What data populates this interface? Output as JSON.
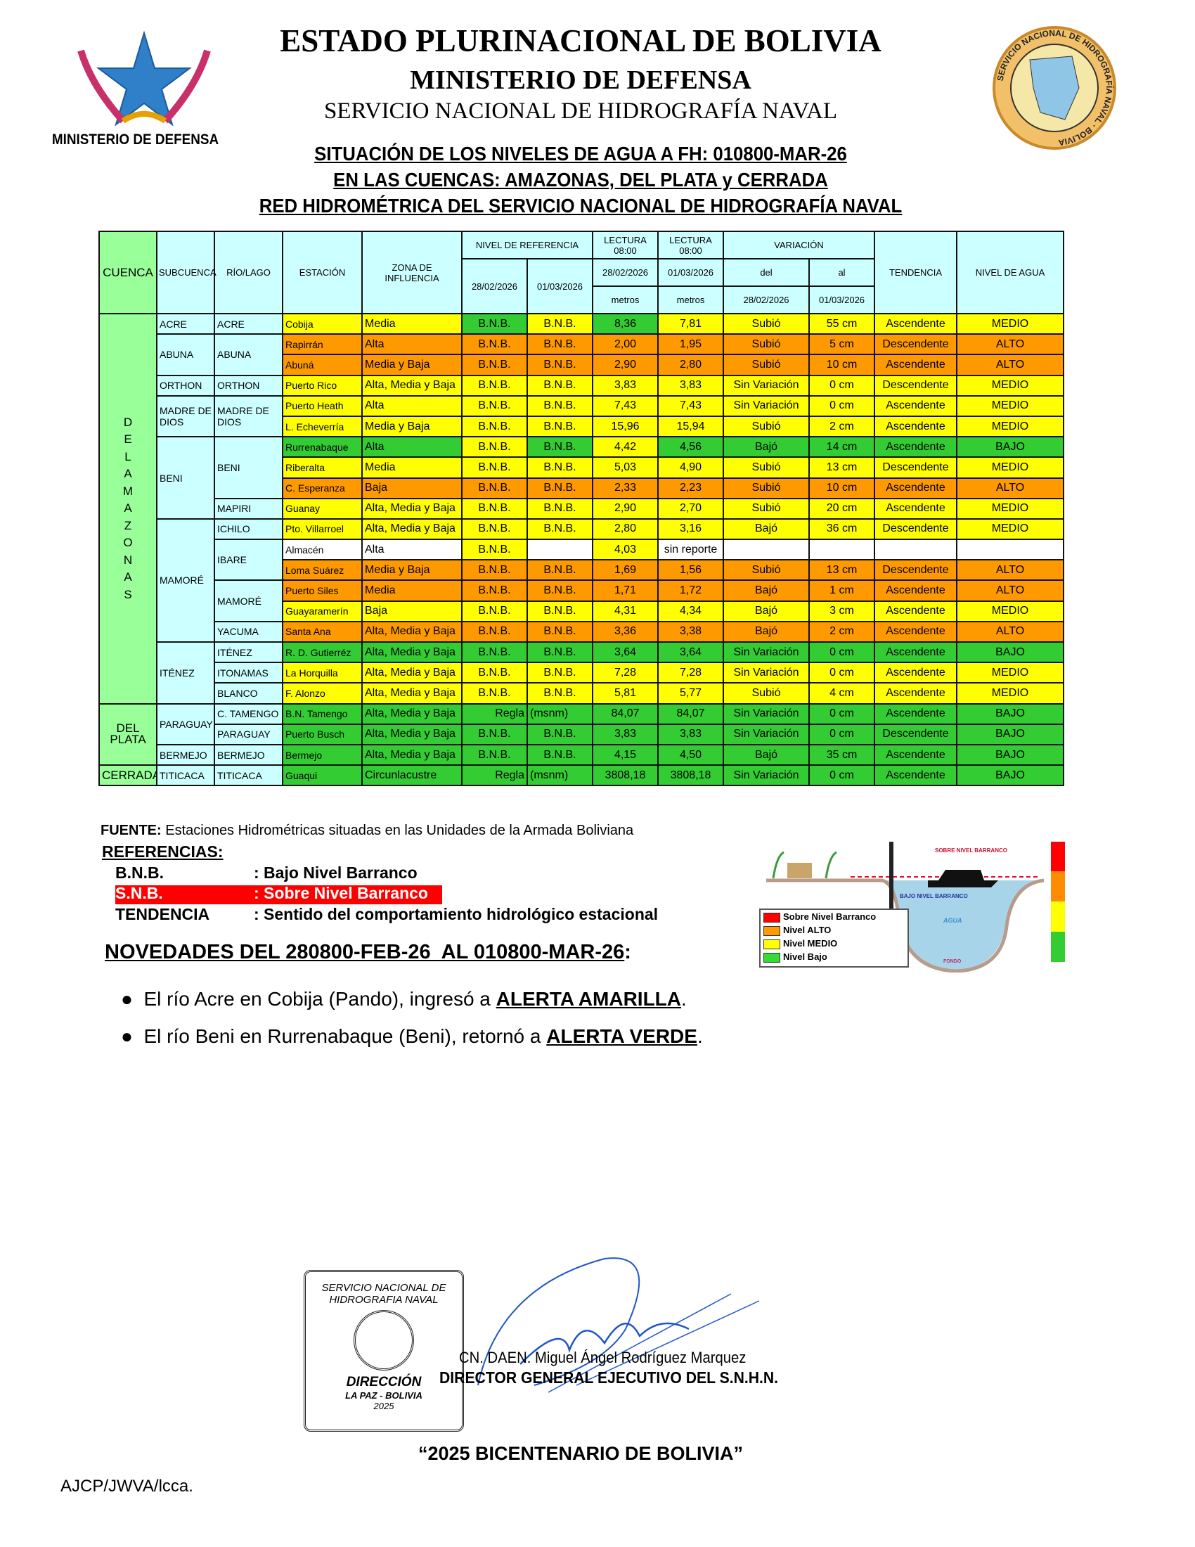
{
  "header": {
    "line1": "ESTADO PLURINACIONAL DE BOLIVIA",
    "line2": "MINISTERIO DE DEFENSA",
    "line3": "SERVICIO NACIONAL DE HIDROGRAFÍA NAVAL",
    "subtitle1": "SITUACIÓN DE LOS NIVELES DE AGUA A FH: 010800-MAR-26",
    "subtitle2": "EN LAS CUENCAS: AMAZONAS, DEL PLATA y CERRADA",
    "subtitle3": "RED HIDROMÉTRICA DEL SERVICIO NACIONAL DE HIDROGRAFÍA NAVAL",
    "left_logo_text": "MINISTERIO DE DEFENSA",
    "right_seal_text": "SERVICIO NACIONAL DE HIDROGRAFÍA NAVAL · BOLIVIA"
  },
  "colors": {
    "yellow": "#ffff00",
    "orange": "#ff9900",
    "green": "#33cc33",
    "header": "#ccffff",
    "cuenca": "#99ff99",
    "red": "#ff0000"
  },
  "table": {
    "headers": {
      "cuenca": "CUENCA",
      "subcuenca": "SUBCUENCA",
      "rio": "RÍO/LAGO",
      "estacion": "ESTACIÓN",
      "zona": "ZONA DE INFLUENCIA",
      "nivel_ref": "NIVEL DE REFERENCIA",
      "ref_d1": "28/02/2026",
      "ref_d2": "01/03/2026",
      "lectura1": "LECTURA 08:00",
      "lectura1_date": "28/02/2026",
      "lectura1_unit": "metros",
      "lectura2": "LECTURA 08:00",
      "lectura2_date": "01/03/2026",
      "lectura2_unit": "metros",
      "variacion": "VARIACIÓN",
      "del": "del",
      "al": "al",
      "del_date": "28/02/2026",
      "al_date": "01/03/2026",
      "tendencia": "TENDENCIA",
      "nivel": "NIVEL DE AGUA"
    },
    "cuencas": [
      {
        "label": "DEL AMAZONAS",
        "rows": 19,
        "vertical": true
      },
      {
        "label": "DEL PLATA",
        "rows": 3
      },
      {
        "label": "CERRADA",
        "rows": 1
      }
    ],
    "subcuencas": [
      {
        "label": "ACRE",
        "rows": 1
      },
      {
        "label": "ABUNA",
        "rows": 2
      },
      {
        "label": "ORTHON",
        "rows": 1
      },
      {
        "label": "MADRE DE DIOS",
        "rows": 2
      },
      {
        "label": "BENI",
        "rows": 4
      },
      {
        "label": "MAMORÉ",
        "rows": 6
      },
      {
        "label": "ITÉNEZ",
        "rows": 3
      },
      {
        "label": "PARAGUAY",
        "rows": 2
      },
      {
        "label": "BERMEJO",
        "rows": 1
      },
      {
        "label": "TITICACA",
        "rows": 1
      }
    ],
    "rios": [
      {
        "label": "ACRE",
        "rows": 1
      },
      {
        "label": "ABUNA",
        "rows": 2
      },
      {
        "label": "ORTHON",
        "rows": 1
      },
      {
        "label": "MADRE DE DIOS",
        "rows": 2
      },
      {
        "label": "BENI",
        "rows": 3
      },
      {
        "label": "MAPIRI",
        "rows": 1
      },
      {
        "label": "ICHILO",
        "rows": 1
      },
      {
        "label": "IBARE",
        "rows": 2
      },
      {
        "label": "MAMORÉ",
        "rows": 2
      },
      {
        "label": "YACUMA",
        "rows": 1
      },
      {
        "label": "ITÉNEZ",
        "rows": 1
      },
      {
        "label": "ITONAMAS",
        "rows": 1
      },
      {
        "label": "BLANCO",
        "rows": 1
      },
      {
        "label": "C. TAMENGO",
        "rows": 1
      },
      {
        "label": "PARAGUAY",
        "rows": 1
      },
      {
        "label": "BERMEJO",
        "rows": 1
      },
      {
        "label": "TITICACA",
        "rows": 1
      }
    ],
    "rows": [
      {
        "estacion": "Cobija",
        "zona": "Media",
        "ref1": "B.N.B.",
        "ref2": "B.N.B.",
        "lect1": "8,36",
        "lect2": "7,81",
        "var": "Subió",
        "cm": "55 cm",
        "tend": "Ascendente",
        "nivel": "MEDIO",
        "colors": "YYGYGYYYYY"
      },
      {
        "estacion": "Rapirrán",
        "zona": "Alta",
        "ref1": "B.N.B.",
        "ref2": "B.N.B.",
        "lect1": "2,00",
        "lect2": "1,95",
        "var": "Subió",
        "cm": "5 cm",
        "tend": "Descendente",
        "nivel": "ALTO",
        "colors": "OOOOOOOOOO"
      },
      {
        "estacion": "Abuná",
        "zona": "Media y Baja",
        "ref1": "B.N.B.",
        "ref2": "B.N.B.",
        "lect1": "2,90",
        "lect2": "2,80",
        "var": "Subió",
        "cm": "10 cm",
        "tend": "Ascendente",
        "nivel": "ALTO",
        "colors": "OOOOOOOOOO"
      },
      {
        "estacion": "Puerto Rico",
        "zona": "Alta, Media y Baja",
        "ref1": "B.N.B.",
        "ref2": "B.N.B.",
        "lect1": "3,83",
        "lect2": "3,83",
        "var": "Sin Variación",
        "cm": "0 cm",
        "tend": "Descendente",
        "nivel": "MEDIO",
        "colors": "YYYYYYYYYY"
      },
      {
        "estacion": "Puerto Heath",
        "zona": "Alta",
        "ref1": "B.N.B.",
        "ref2": "B.N.B.",
        "lect1": "7,43",
        "lect2": "7,43",
        "var": "Sin Variación",
        "cm": "0 cm",
        "tend": "Ascendente",
        "nivel": "MEDIO",
        "colors": "YYYYYYYYYY"
      },
      {
        "estacion": "L. Echeverría",
        "zona": "Media y Baja",
        "ref1": "B.N.B.",
        "ref2": "B.N.B.",
        "lect1": "15,96",
        "lect2": "15,94",
        "var": "Subió",
        "cm": "2 cm",
        "tend": "Ascendente",
        "nivel": "MEDIO",
        "colors": "YYYYYYYYYY"
      },
      {
        "estacion": "Rurrenabaque",
        "zona": "Alta",
        "ref1": "B.N.B.",
        "ref2": "B.N.B.",
        "lect1": "4,42",
        "lect2": "4,56",
        "var": "Bajó",
        "cm": "14 cm",
        "tend": "Ascendente",
        "nivel": "BAJO",
        "colors": "GGYGYGGGGG"
      },
      {
        "estacion": "Riberalta",
        "zona": "Media",
        "ref1": "B.N.B.",
        "ref2": "B.N.B.",
        "lect1": "5,03",
        "lect2": "4,90",
        "var": "Subió",
        "cm": "13 cm",
        "tend": "Descendente",
        "nivel": "MEDIO",
        "colors": "YYYYYYYYYY"
      },
      {
        "estacion": "C. Esperanza",
        "zona": "Baja",
        "ref1": "B.N.B.",
        "ref2": "B.N.B.",
        "lect1": "2,33",
        "lect2": "2,23",
        "var": "Subió",
        "cm": "10 cm",
        "tend": "Ascendente",
        "nivel": "ALTO",
        "colors": "OOOOOOOOOO"
      },
      {
        "estacion": "Guanay",
        "zona": "Alta, Media y Baja",
        "ref1": "B.N.B.",
        "ref2": "B.N.B.",
        "lect1": "2,90",
        "lect2": "2,70",
        "var": "Subió",
        "cm": "20 cm",
        "tend": "Ascendente",
        "nivel": "MEDIO",
        "colors": "YYYYYYYYYY"
      },
      {
        "estacion": "Pto. Villarroel",
        "zona": "Alta, Media y Baja",
        "ref1": "B.N.B.",
        "ref2": "B.N.B.",
        "lect1": "2,80",
        "lect2": "3,16",
        "var": "Bajó",
        "cm": "36 cm",
        "tend": "Descendente",
        "nivel": "MEDIO",
        "colors": "YYYYYYYYYY"
      },
      {
        "estacion": "Almacén",
        "zona": "Alta",
        "ref1": "B.N.B.",
        "ref2": "",
        "lect1": "4,03",
        "lect2": "sin reporte",
        "var": "",
        "cm": "",
        "tend": "",
        "nivel": "",
        "colors": "WWYWYWWWWW"
      },
      {
        "estacion": "Loma Suárez",
        "zona": "Media y Baja",
        "ref1": "B.N.B.",
        "ref2": "B.N.B.",
        "lect1": "1,69",
        "lect2": "1,56",
        "var": "Subió",
        "cm": "13 cm",
        "tend": "Descendente",
        "nivel": "ALTO",
        "colors": "OOOOOOOOOO"
      },
      {
        "estacion": "Puerto Siles",
        "zona": "Media",
        "ref1": "B.N.B.",
        "ref2": "B.N.B.",
        "lect1": "1,71",
        "lect2": "1,72",
        "var": "Bajó",
        "cm": "1 cm",
        "tend": "Ascendente",
        "nivel": "ALTO",
        "colors": "OOOOOOOOOO"
      },
      {
        "estacion": "Guayaramerín",
        "zona": "Baja",
        "ref1": "B.N.B.",
        "ref2": "B.N.B.",
        "lect1": "4,31",
        "lect2": "4,34",
        "var": "Bajó",
        "cm": "3 cm",
        "tend": "Ascendente",
        "nivel": "MEDIO",
        "colors": "YYYYYYYYYY"
      },
      {
        "estacion": "Santa Ana",
        "zona": "Alta, Media y Baja",
        "ref1": "B.N.B.",
        "ref2": "B.N.B.",
        "lect1": "3,36",
        "lect2": "3,38",
        "var": "Bajó",
        "cm": "2 cm",
        "tend": "Ascendente",
        "nivel": "ALTO",
        "colors": "OOOOOOOOOO"
      },
      {
        "estacion": "R. D. Gutierréz",
        "zona": "Alta, Media y Baja",
        "ref1": "B.N.B.",
        "ref2": "B.N.B.",
        "lect1": "3,64",
        "lect2": "3,64",
        "var": "Sin Variación",
        "cm": "0 cm",
        "tend": "Ascendente",
        "nivel": "BAJO",
        "colors": "GGGGGGGGGG"
      },
      {
        "estacion": "La Horquilla",
        "zona": "Alta, Media y Baja",
        "ref1": "B.N.B.",
        "ref2": "B.N.B.",
        "lect1": "7,28",
        "lect2": "7,28",
        "var": "Sin Variación",
        "cm": "0 cm",
        "tend": "Ascendente",
        "nivel": "MEDIO",
        "colors": "YYYYYYYYYY"
      },
      {
        "estacion": "F. Alonzo",
        "zona": "Alta, Media y Baja",
        "ref1": "B.N.B.",
        "ref2": "B.N.B.",
        "lect1": "5,81",
        "lect2": "5,77",
        "var": "Subió",
        "cm": "4 cm",
        "tend": "Ascendente",
        "nivel": "MEDIO",
        "colors": "YYYYYYYYYY"
      },
      {
        "estacion": "B.N. Tamengo",
        "zona": "Alta, Media y Baja",
        "ref1": "Regla",
        "ref2": "(msnm)",
        "lect1": "84,07",
        "lect2": "84,07",
        "var": "Sin Variación",
        "cm": "0 cm",
        "tend": "Ascendente",
        "nivel": "BAJO",
        "colors": "GGGGGGGGGG"
      },
      {
        "estacion": "Puerto Busch",
        "zona": "Alta, Media y Baja",
        "ref1": "B.N.B.",
        "ref2": "B.N.B.",
        "lect1": "3,83",
        "lect2": "3,83",
        "var": "Sin Variación",
        "cm": "0 cm",
        "tend": "Descendente",
        "nivel": "BAJO",
        "colors": "GGGGGGGGGG"
      },
      {
        "estacion": "Bermejo",
        "zona": "Alta, Media y Baja",
        "ref1": "B.N.B.",
        "ref2": "B.N.B.",
        "lect1": "4,15",
        "lect2": "4,50",
        "var": "Bajó",
        "cm": "35 cm",
        "tend": "Ascendente",
        "nivel": "BAJO",
        "colors": "GGGGGGGGGG"
      },
      {
        "estacion": "Guaqui",
        "zona": "Circunlacustre",
        "ref1": "Regla",
        "ref2": "(msnm)",
        "lect1": "3808,18",
        "lect2": "3808,18",
        "var": "Sin Variación",
        "cm": "0 cm",
        "tend": "Ascendente",
        "nivel": "BAJO",
        "colors": "GGGGGGGGGG"
      }
    ]
  },
  "fuente": {
    "label": "FUENTE:",
    "text": " Estaciones Hidrométricas situadas en las Unidades de la Armada Boliviana"
  },
  "referencias": {
    "title": "REFERENCIAS:",
    "items": [
      {
        "term": "B.N.B.",
        "def": ": Bajo Nivel Barranco"
      },
      {
        "term": "S.N.B.",
        "def": ": Sobre Nivel Barranco"
      },
      {
        "term": "TENDENCIA",
        "def": ": Sentido del comportamiento hidrológico estacional"
      }
    ]
  },
  "diagram": {
    "legend": [
      "Sobre Nivel Barranco",
      "Nivel ALTO",
      "Nivel MEDIO",
      "Nivel Bajo"
    ],
    "labels": {
      "snb": "SOBRE NIVEL BARRANCO",
      "bnb": "BAJO NIVEL BARRANCO",
      "agua": "AGUA",
      "fondo": "FONDO"
    }
  },
  "novedades": {
    "title": "NOVEDADES DEL 280800-FEB-26  AL 010800-MAR-26",
    "items": [
      {
        "text": "El río Acre en Cobija (Pando), ingresó a ",
        "alert": "ALERTA AMARILLA",
        "end": "."
      },
      {
        "text": "El río Beni en Rurrenabaque (Beni), retornó a ",
        "alert": "ALERTA VERDE",
        "end": "."
      }
    ]
  },
  "stamp": {
    "line1": "SERVICIO NACIONAL DE",
    "line2": "HIDROGRAFIA NAVAL",
    "line3": "DIRECCIÓN",
    "line4": "LA PAZ - BOLIVIA",
    "line5": "2025"
  },
  "signature": {
    "name": "CN. DAEN. Miguel Ángel Rodríguez Marquez",
    "title": "DIRECTOR GENERAL EJECUTIVO DEL S.N.H.N."
  },
  "footer": {
    "motto": "“2025 BICENTENARIO DE BOLIVIA”",
    "initials": "AJCP/JWVA/lcca."
  }
}
